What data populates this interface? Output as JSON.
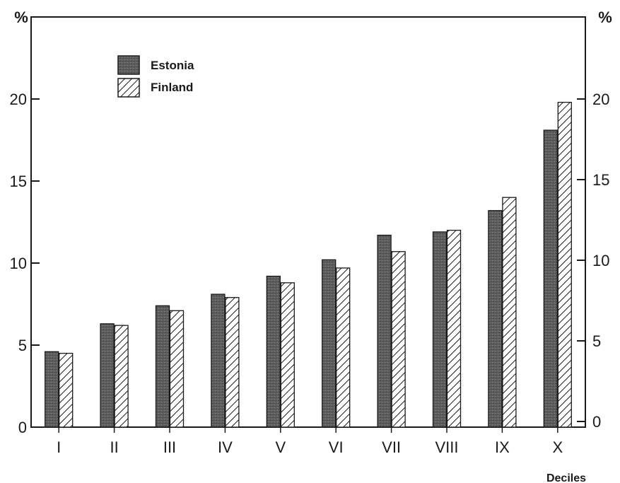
{
  "chart_data": {
    "type": "bar",
    "categories": [
      "I",
      "II",
      "III",
      "IV",
      "V",
      "VI",
      "VII",
      "VIII",
      "IX",
      "X"
    ],
    "series": [
      {
        "name": "Estonia",
        "values": [
          4.6,
          6.3,
          7.4,
          8.1,
          9.2,
          10.2,
          11.7,
          11.9,
          13.2,
          18.1
        ]
      },
      {
        "name": "Finland",
        "values": [
          4.5,
          6.2,
          7.1,
          7.9,
          8.8,
          9.7,
          10.7,
          12.0,
          14.0,
          19.8
        ]
      }
    ],
    "yticks": [
      "0",
      "5",
      "10",
      "15",
      "20"
    ],
    "yunit_left": "%",
    "yunit_right": "%",
    "xlabel": "Deciles",
    "ylim": [
      0,
      24
    ],
    "grid": false,
    "legend_position": "top-left",
    "colors": {
      "estonia": "#5a5a5a",
      "finland": "#ffffff",
      "axis": "#1a1a1a"
    }
  }
}
